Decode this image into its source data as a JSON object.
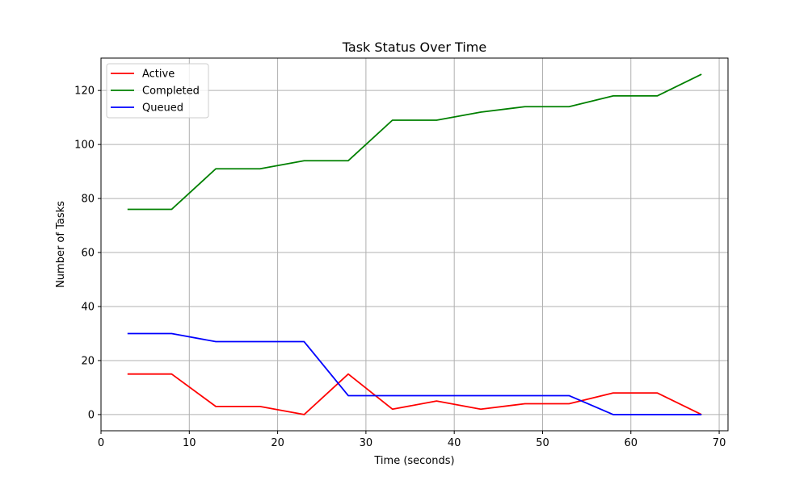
{
  "chart_data": {
    "type": "line",
    "title": "Task Status Over Time",
    "xlabel": "Time (seconds)",
    "ylabel": "Number of Tasks",
    "xlim": [
      0,
      71
    ],
    "ylim": [
      -6,
      132
    ],
    "xticks": [
      0,
      10,
      20,
      30,
      40,
      50,
      60,
      70
    ],
    "yticks": [
      0,
      20,
      40,
      60,
      80,
      100,
      120
    ],
    "grid": true,
    "legend_position": "top-left",
    "x": [
      3,
      8,
      13,
      18,
      23,
      28,
      33,
      38,
      43,
      48,
      53,
      58,
      63,
      68
    ],
    "series": [
      {
        "name": "Active",
        "color": "#ff0000",
        "values": [
          15,
          15,
          3,
          3,
          0,
          15,
          2,
          5,
          2,
          4,
          4,
          8,
          8,
          0
        ]
      },
      {
        "name": "Completed",
        "color": "#008000",
        "values": [
          76,
          76,
          91,
          91,
          94,
          94,
          109,
          109,
          112,
          114,
          114,
          118,
          118,
          126
        ]
      },
      {
        "name": "Queued",
        "color": "#0000ff",
        "values": [
          30,
          30,
          27,
          27,
          27,
          7,
          7,
          7,
          7,
          7,
          7,
          0,
          0,
          0
        ]
      }
    ]
  }
}
